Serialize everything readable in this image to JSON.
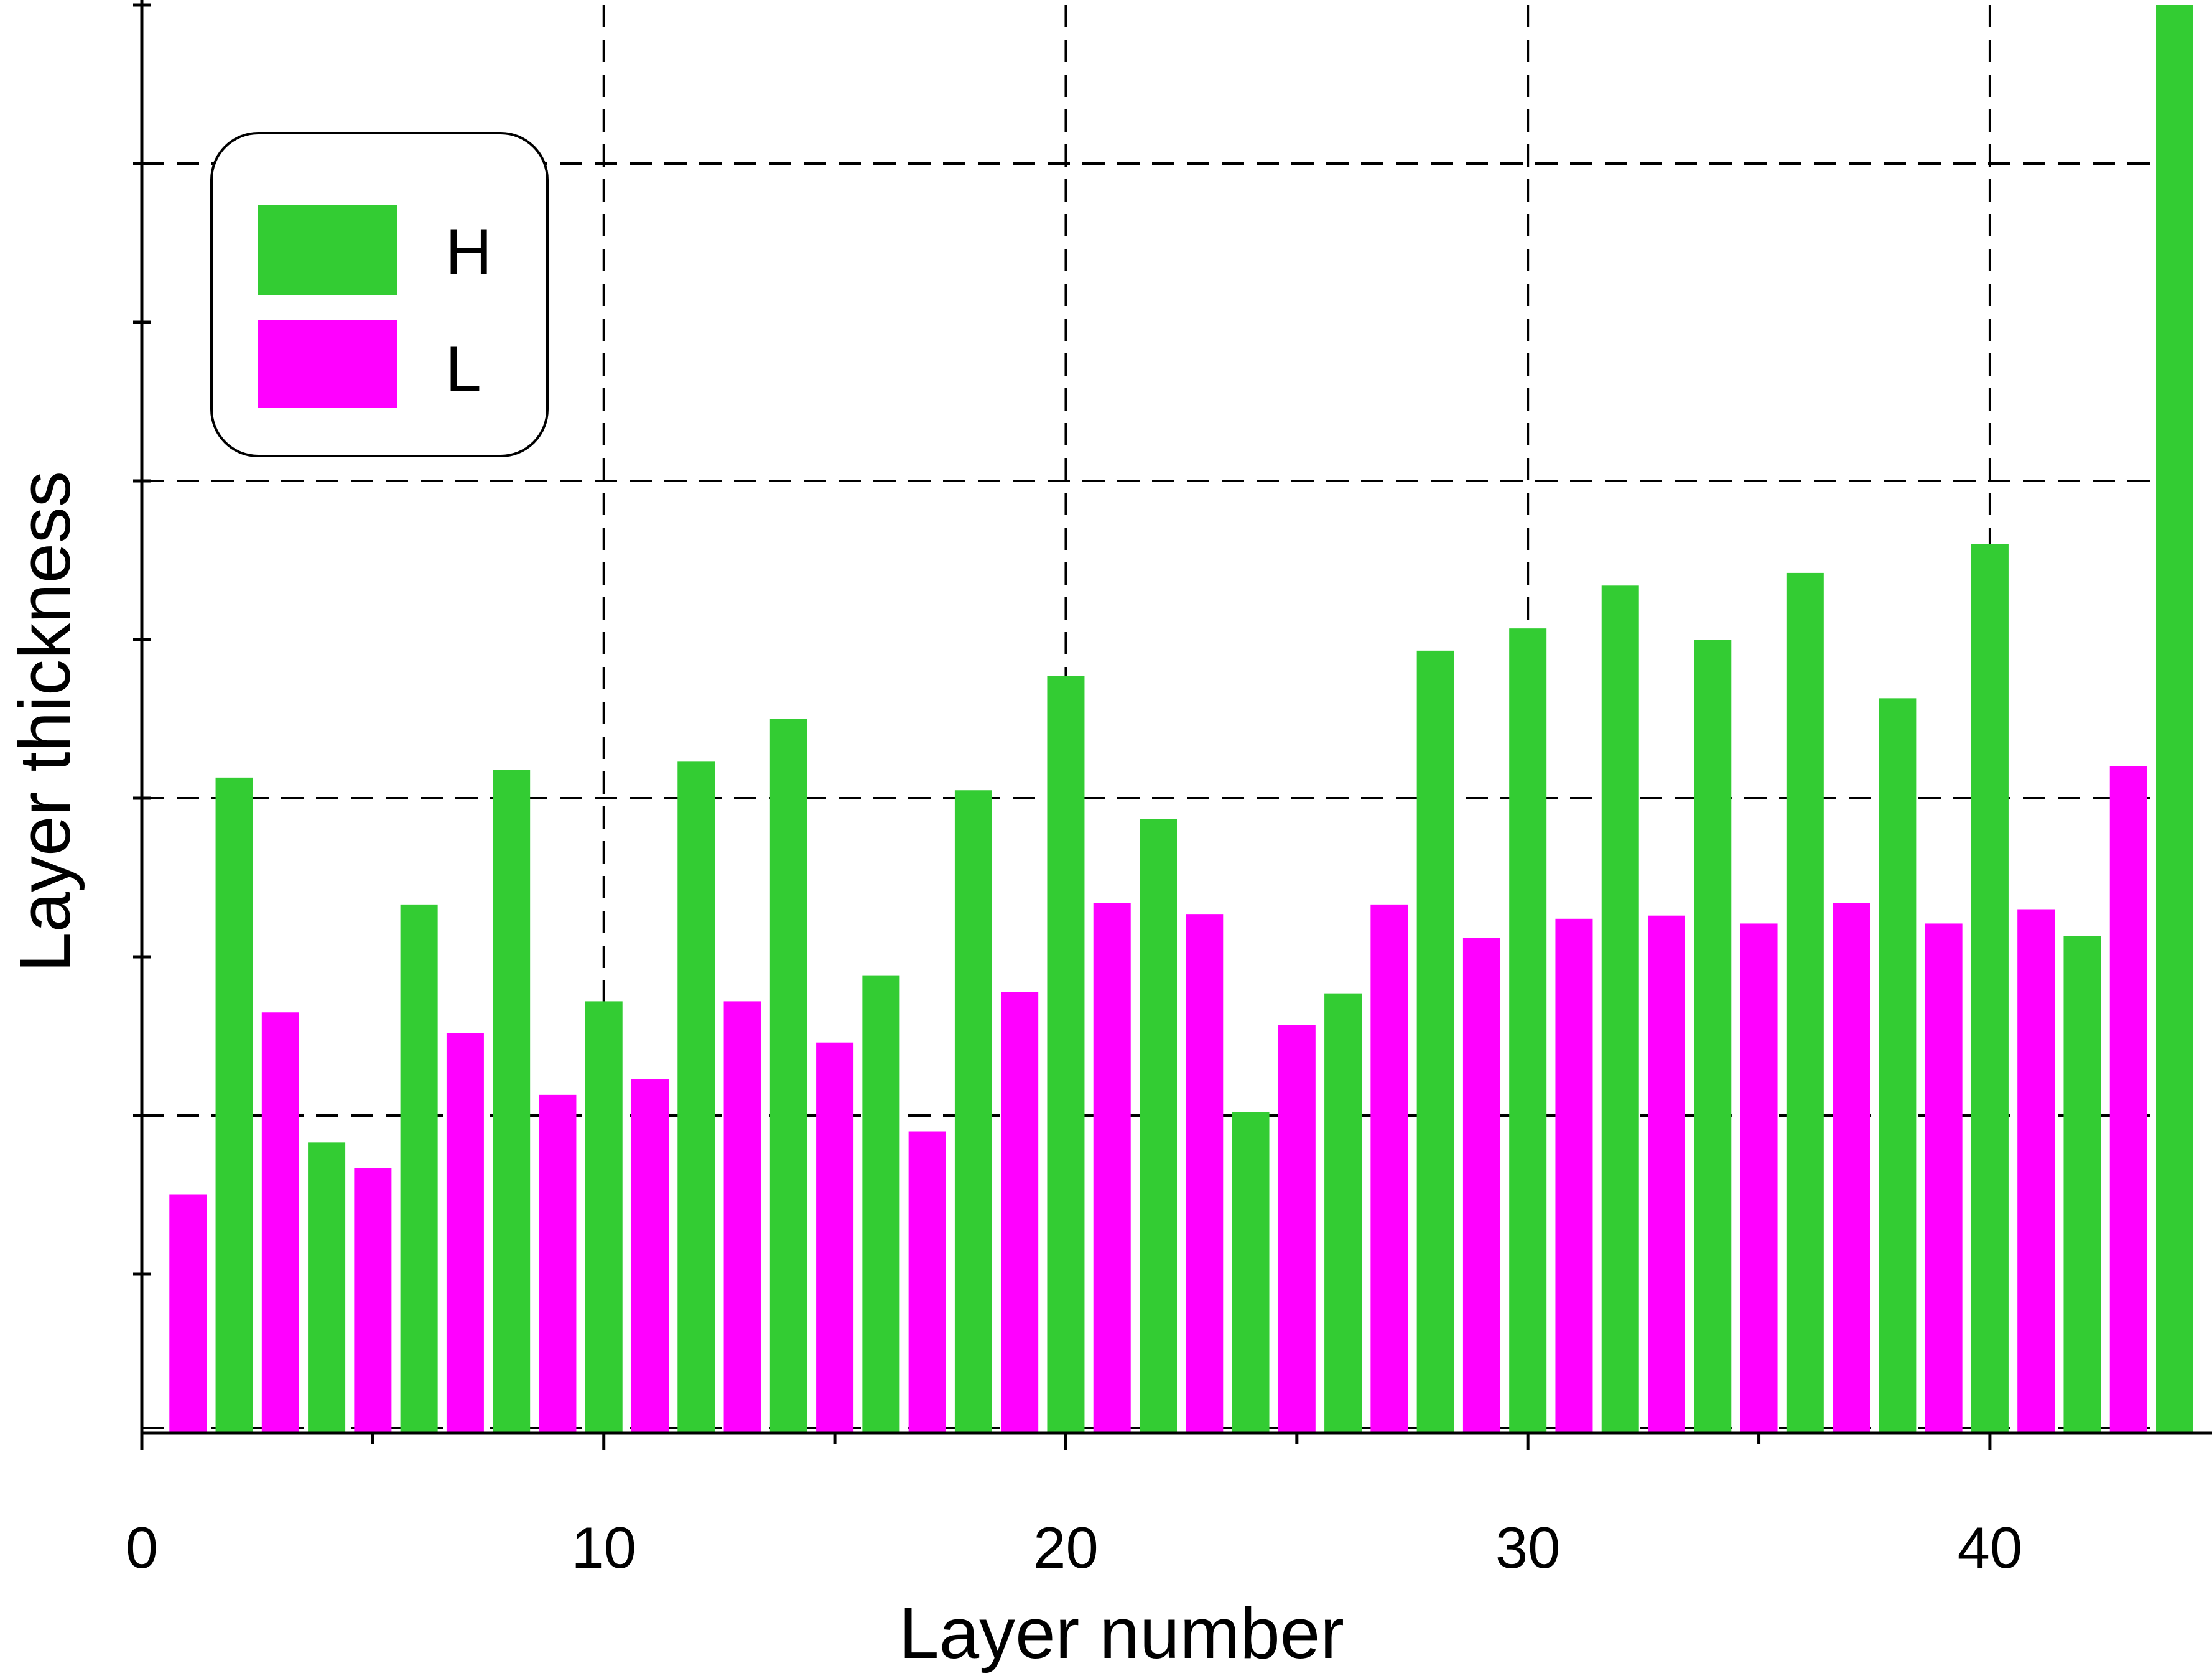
{
  "chart_data": {
    "type": "bar",
    "xlabel": "Layer number",
    "ylabel": "Layer thickness",
    "xlim": [
      0,
      44
    ],
    "ylim": [
      0,
      9
    ],
    "x_ticks": [
      0,
      10,
      20,
      30,
      40
    ],
    "x_tick_labels": [
      "0",
      "10",
      "20",
      "30",
      "40"
    ],
    "y_ticks": [
      1,
      2,
      3,
      4,
      5,
      6,
      7,
      8,
      9
    ],
    "grid": true,
    "legend_position": "top-left",
    "colors": {
      "H": "#33cc33",
      "L": "#ff00ff"
    },
    "series": [
      {
        "name": "H",
        "x": [
          2,
          4,
          6,
          8,
          10,
          12,
          14,
          16,
          18,
          20,
          22,
          24,
          26,
          28,
          30,
          32,
          34,
          36,
          38,
          40,
          42,
          44
        ],
        "values": [
          4.13,
          1.83,
          3.33,
          4.18,
          2.72,
          4.23,
          4.5,
          2.88,
          4.05,
          4.77,
          3.87,
          2.02,
          2.77,
          4.93,
          5.07,
          5.34,
          5.0,
          5.42,
          4.63,
          5.6,
          3.13,
          9.0
        ]
      },
      {
        "name": "L",
        "x": [
          1,
          3,
          5,
          7,
          9,
          11,
          13,
          15,
          17,
          19,
          21,
          23,
          25,
          27,
          29,
          31,
          33,
          35,
          37,
          39,
          41,
          43
        ],
        "values": [
          1.5,
          2.65,
          1.67,
          2.52,
          2.13,
          2.23,
          2.72,
          2.46,
          1.9,
          2.78,
          3.34,
          3.27,
          2.57,
          3.33,
          3.12,
          3.24,
          3.26,
          3.21,
          3.34,
          3.21,
          3.3,
          4.2
        ]
      }
    ]
  }
}
